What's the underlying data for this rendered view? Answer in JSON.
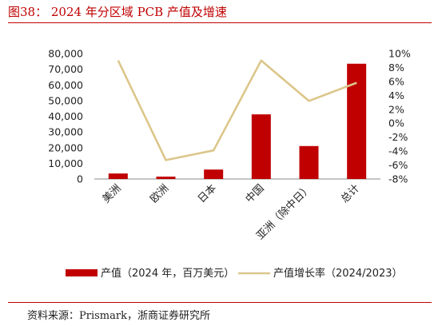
{
  "header": {
    "title": "图38： 2024 年分区域 PCB 产值及增速"
  },
  "footer": {
    "source": "资料来源：Prismark，浙商证券研究所"
  },
  "colors": {
    "bar": "#c00000",
    "line": "#dcc68a",
    "rule": "#c00000",
    "axis": "#888888"
  },
  "chart_data": {
    "type": "bar",
    "title": "",
    "categories": [
      "美洲",
      "欧洲",
      "日本",
      "中国",
      "亚洲（除中日）",
      "总计"
    ],
    "y_left": {
      "ticks": [
        "0",
        "10,000",
        "20,000",
        "30,000",
        "40,000",
        "50,000",
        "60,000",
        "70,000",
        "80,000"
      ],
      "ylim": [
        0,
        80000
      ]
    },
    "y_right": {
      "ticks": [
        "-8%",
        "-6%",
        "-4%",
        "-2%",
        "0%",
        "2%",
        "4%",
        "6%",
        "8%",
        "10%"
      ],
      "ylim": [
        -8,
        10
      ]
    },
    "series": [
      {
        "name": "产值（2024 年，百万美元）",
        "type": "bar",
        "axis": "left",
        "values": [
          3500,
          1500,
          6000,
          41200,
          21000,
          73500
        ]
      },
      {
        "name": "产值增长率（2024/2023）",
        "type": "line",
        "axis": "right",
        "values": [
          9.0,
          -5.3,
          -3.9,
          9.0,
          3.2,
          5.8
        ]
      }
    ],
    "legend": "bottom"
  }
}
